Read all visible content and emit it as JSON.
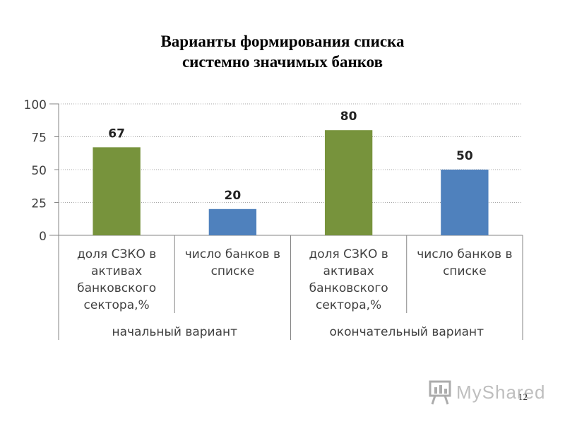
{
  "title_lines": [
    "Варианты формирования списка",
    "системно значимых банков"
  ],
  "page_number": "12",
  "watermark": {
    "text": "MyShared",
    "icon": "presentation-board-icon"
  },
  "colors": {
    "green": "#77933C",
    "blue": "#4F81BD",
    "grid": "#A6A6A6",
    "axis": "#868686"
  },
  "chart_data": {
    "type": "bar",
    "title": "Варианты формирования списка системно значимых банков",
    "xlabel": "",
    "ylabel": "",
    "ylim": [
      0,
      100
    ],
    "yticks": [
      0,
      25,
      50,
      75,
      100
    ],
    "grid": true,
    "legend": "none",
    "groups": [
      {
        "label": "начальный вариант",
        "categories": [
          {
            "label_lines": [
              "доля СЗКО в",
              "активах",
              "банковского",
              "сектора,%"
            ],
            "value": 67,
            "color": "#77933C"
          },
          {
            "label_lines": [
              "число банков в",
              "списке"
            ],
            "value": 20,
            "color": "#4F81BD"
          }
        ]
      },
      {
        "label": "окончательный вариант",
        "categories": [
          {
            "label_lines": [
              "доля СЗКО в",
              "активах",
              "банковского",
              "сектора,%"
            ],
            "value": 80,
            "color": "#77933C"
          },
          {
            "label_lines": [
              "число банков в",
              "списке"
            ],
            "value": 50,
            "color": "#4F81BD"
          }
        ]
      }
    ]
  }
}
